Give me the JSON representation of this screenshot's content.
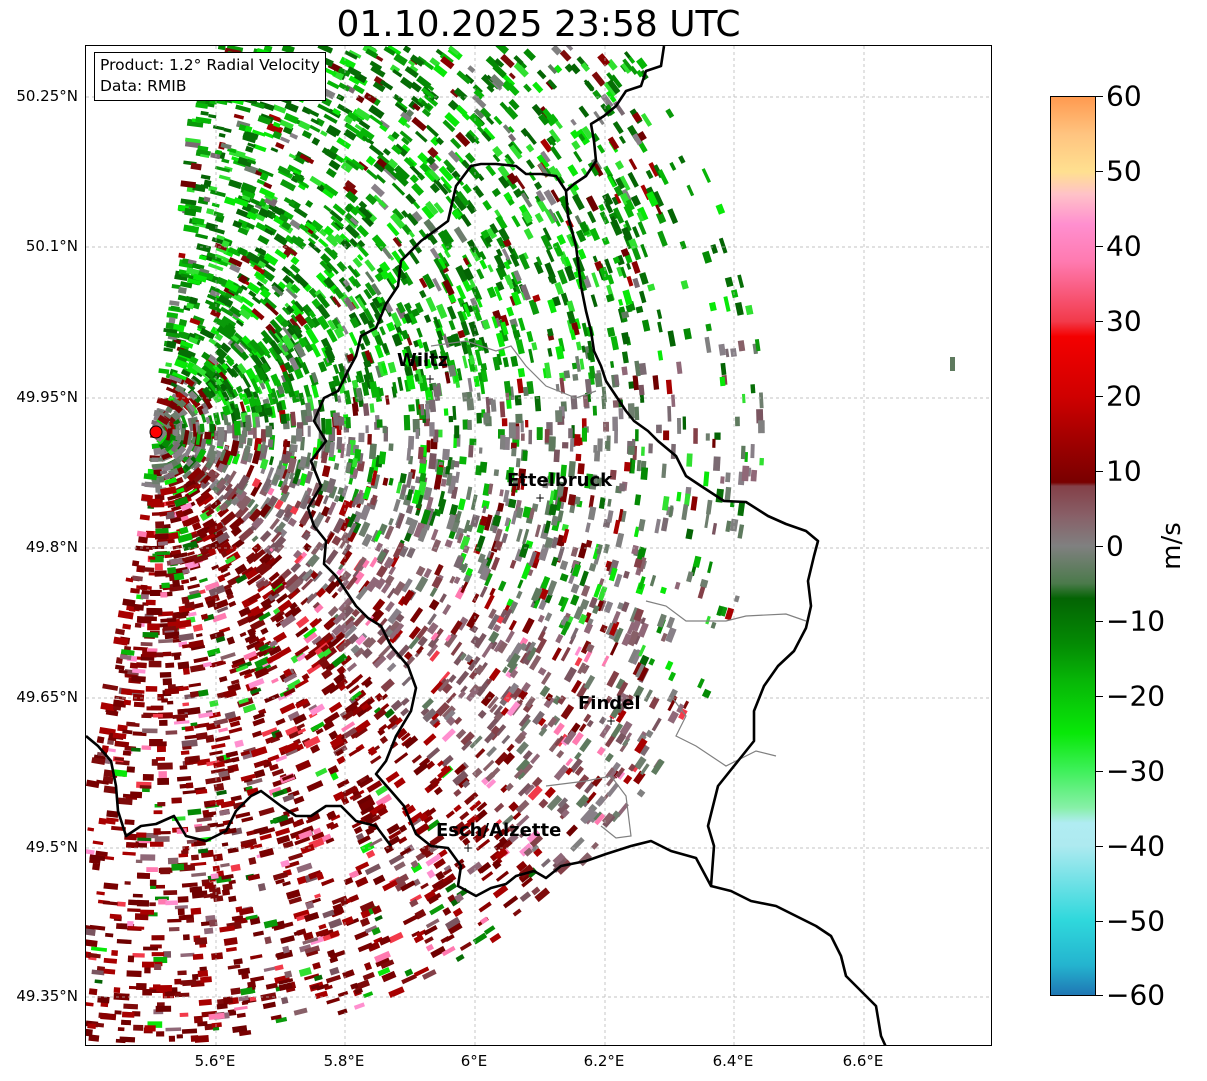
{
  "title": "01.10.2025 23:58 UTC",
  "info_box": {
    "product": "Product: 1.2° Radial Velocity",
    "data_source": "Data: RMIB"
  },
  "axes": {
    "lat_labels": [
      "50.25°N",
      "50.1°N",
      "49.95°N",
      "49.8°N",
      "49.65°N",
      "49.5°N",
      "49.35°N"
    ],
    "lon_labels": [
      "5.6°E",
      "5.8°E",
      "6°E",
      "6.2°E",
      "6.4°E",
      "6.6°E"
    ],
    "lon_range": [
      5.4,
      6.8
    ],
    "lat_range": [
      49.3,
      50.3
    ]
  },
  "cities": [
    {
      "name": "Wiltz",
      "lon": 5.93,
      "lat": 49.97
    },
    {
      "name": "Ettelbruck",
      "lon": 6.1,
      "lat": 49.85
    },
    {
      "name": "Findel",
      "lon": 6.21,
      "lat": 49.63
    },
    {
      "name": "Esch/Alzette",
      "lon": 5.99,
      "lat": 49.5
    }
  ],
  "radar_site": {
    "lon": 5.505,
    "lat": 49.915,
    "color": "#ff0000"
  },
  "colorbar": {
    "label": "m/s",
    "min": -60,
    "max": 60,
    "ticks": [
      "60",
      "50",
      "40",
      "30",
      "20",
      "10",
      "0",
      "−10",
      "−20",
      "−30",
      "−40",
      "−50",
      "−60"
    ],
    "stops": [
      {
        "v": -60,
        "c": "#1f77b4"
      },
      {
        "v": -56,
        "c": "#24b4cf"
      },
      {
        "v": -50,
        "c": "#2fd8dc"
      },
      {
        "v": -40,
        "c": "#aeeaf0"
      },
      {
        "v": -37,
        "c": "#b0ecf2"
      },
      {
        "v": -35,
        "c": "#88f0a8"
      },
      {
        "v": -30,
        "c": "#3ef05a"
      },
      {
        "v": -25,
        "c": "#08e808"
      },
      {
        "v": -18,
        "c": "#07b607"
      },
      {
        "v": -13,
        "c": "#048a04"
      },
      {
        "v": -7,
        "c": "#046404"
      },
      {
        "v": -5,
        "c": "#4b7a4b"
      },
      {
        "v": 0,
        "c": "#808080"
      },
      {
        "v": 4,
        "c": "#886068"
      },
      {
        "v": 8,
        "c": "#844048"
      },
      {
        "v": 8.5,
        "c": "#780000"
      },
      {
        "v": 15,
        "c": "#a80000"
      },
      {
        "v": 20,
        "c": "#d00000"
      },
      {
        "v": 28,
        "c": "#f40000"
      },
      {
        "v": 30,
        "c": "#f23a4a"
      },
      {
        "v": 38,
        "c": "#ff7ab0"
      },
      {
        "v": 43,
        "c": "#ff8fcf"
      },
      {
        "v": 47,
        "c": "#ffc2c8"
      },
      {
        "v": 50,
        "c": "#ffe090"
      },
      {
        "v": 55,
        "c": "#ffc480"
      },
      {
        "v": 60,
        "c": "#ff9a50"
      }
    ]
  },
  "colors": {
    "border": "#000000",
    "canton_border": "#808080",
    "grid": "#b0b0b0"
  }
}
